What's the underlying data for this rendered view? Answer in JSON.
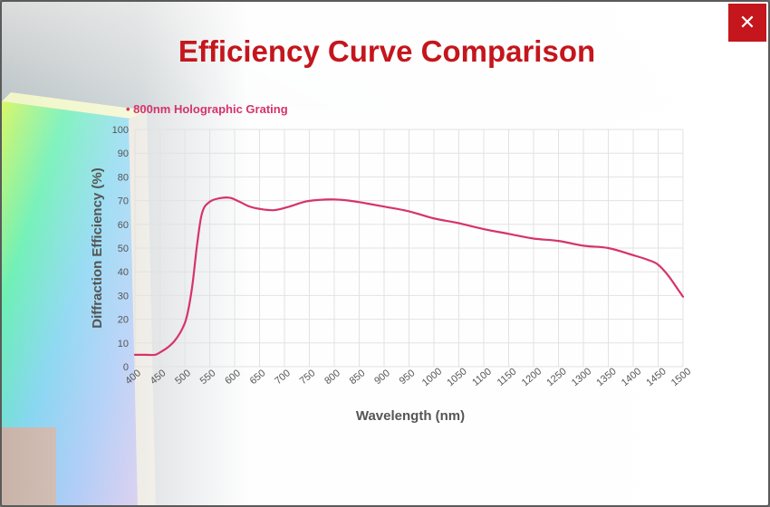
{
  "modal": {
    "title": "Efficiency Curve Comparison",
    "close_label": "✕"
  },
  "colors": {
    "accent": "#c4161c",
    "series": "#d6336c",
    "grid": "#e2e2e2",
    "axis_text": "#555555"
  },
  "chart_data": {
    "type": "line",
    "title": "",
    "xlabel": "Wavelength (nm)",
    "ylabel": "Diffraction Efficiency (%)",
    "xlim": [
      400,
      1500
    ],
    "ylim": [
      0,
      100
    ],
    "x_ticks": [
      400,
      450,
      500,
      550,
      600,
      650,
      700,
      750,
      800,
      850,
      900,
      950,
      1000,
      1050,
      1100,
      1150,
      1200,
      1250,
      1300,
      1350,
      1400,
      1450,
      1500
    ],
    "y_ticks": [
      0,
      10,
      20,
      30,
      40,
      50,
      60,
      70,
      80,
      90,
      100
    ],
    "grid": true,
    "legend_position": "top-left",
    "series": [
      {
        "name": "800nm Holographic Grating",
        "x": [
          400,
          420,
          440,
          450,
          465,
          480,
          495,
          505,
          515,
          525,
          535,
          550,
          570,
          590,
          610,
          630,
          650,
          680,
          710,
          740,
          770,
          800,
          830,
          860,
          900,
          950,
          1000,
          1050,
          1100,
          1150,
          1200,
          1250,
          1300,
          1350,
          1400,
          1430,
          1450,
          1470,
          1490,
          1500
        ],
        "y": [
          5,
          5,
          5,
          6,
          8,
          11,
          16,
          22,
          34,
          52,
          65,
          69.5,
          71,
          71.2,
          69.5,
          67.5,
          66.5,
          66,
          67.5,
          69.5,
          70.3,
          70.5,
          70,
          69,
          67.5,
          65.5,
          62.5,
          60.5,
          58,
          56,
          54,
          53,
          51,
          50,
          47,
          45,
          43,
          38.5,
          32.5,
          29.5
        ]
      }
    ]
  }
}
